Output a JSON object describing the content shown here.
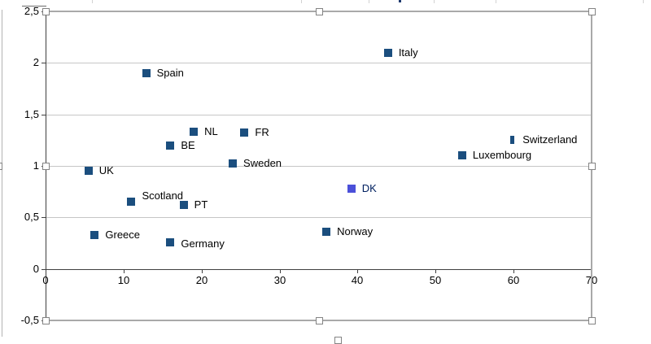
{
  "chart_data": {
    "type": "scatter",
    "title": "",
    "xlabel": "",
    "ylabel": "",
    "x_axis": {
      "min": 0,
      "max": 70,
      "tick_step": 10,
      "ticks": [
        0,
        10,
        20,
        30,
        40,
        50,
        60,
        70
      ],
      "tick_labels": [
        "0",
        "10",
        "20",
        "30",
        "40",
        "50",
        "60",
        "70"
      ]
    },
    "y_axis": {
      "min": -0.5,
      "max": 2.5,
      "tick_step": 0.5,
      "ticks": [
        2.5,
        2,
        1.5,
        1,
        0.5,
        0,
        -0.5
      ],
      "tick_labels": [
        "2,5",
        "2",
        "1,5",
        "1",
        "0,5",
        "0",
        "-0,5"
      ]
    },
    "grid": true,
    "legend": "none",
    "points": [
      {
        "label": "UK",
        "x": 5.5,
        "y": 0.95
      },
      {
        "label": "Greece",
        "x": 6.3,
        "y": 0.33
      },
      {
        "label": "Scotland",
        "x": 11.0,
        "y": 0.65,
        "label_dy": -7
      },
      {
        "label": "Spain",
        "x": 12.9,
        "y": 1.9
      },
      {
        "label": "Germany",
        "x": 16.0,
        "y": 0.26,
        "label_dy": 2
      },
      {
        "label": "BE",
        "x": 16.0,
        "y": 1.2
      },
      {
        "label": "PT",
        "x": 17.7,
        "y": 0.62
      },
      {
        "label": "NL",
        "x": 19.0,
        "y": 1.33
      },
      {
        "label": "Sweden",
        "x": 24.0,
        "y": 1.02
      },
      {
        "label": "FR",
        "x": 25.5,
        "y": 1.32
      },
      {
        "label": "Norway",
        "x": 36.0,
        "y": 0.36
      },
      {
        "label": "DK",
        "x": 39.2,
        "y": 0.78,
        "marker_color": "#4b50d9",
        "label_color": "#002060"
      },
      {
        "label": "Italy",
        "x": 43.9,
        "y": 2.1
      },
      {
        "label": "Luxembourg",
        "x": 53.4,
        "y": 1.1
      },
      {
        "label": "Switzerland",
        "x": 59.8,
        "y": 1.25,
        "marker_width": 5
      }
    ],
    "colors": {
      "marker": "#1b4e7e",
      "highlight_marker": "#4b50d9",
      "highlight_label": "#002060",
      "gridline": "#c6c6c6",
      "axis": "#404040",
      "selection_frame": "#a9a9a9"
    }
  },
  "selection": {
    "selected": true,
    "handle_positions": [
      "top-left",
      "top-mid",
      "top-right",
      "mid-left",
      "mid-right",
      "bottom-left",
      "bottom-mid",
      "bottom-right"
    ]
  }
}
